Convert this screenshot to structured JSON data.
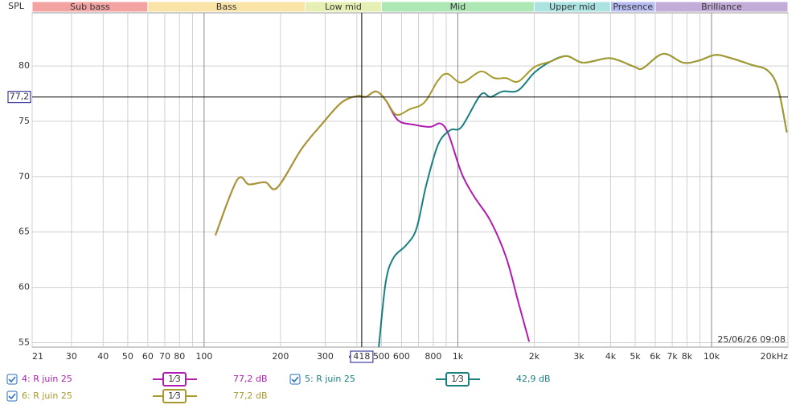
{
  "chart_data": {
    "type": "line",
    "y_label": "SPL",
    "log_x": true,
    "grid": true,
    "xlim": [
      21,
      20000
    ],
    "ylim": [
      54.6,
      84.8
    ],
    "xticks": [
      21,
      30,
      40,
      50,
      60,
      70,
      80,
      100,
      200,
      300,
      400,
      500,
      600,
      800,
      {
        "value": 1000,
        "label": "1k"
      },
      {
        "value": 2000,
        "label": "2k"
      },
      {
        "value": 3000,
        "label": "3k"
      },
      {
        "value": 4000,
        "label": "4k"
      },
      {
        "value": 5000,
        "label": "5k"
      },
      {
        "value": 6000,
        "label": "6k"
      },
      {
        "value": 7000,
        "label": "7k"
      },
      {
        "value": 8000,
        "label": "8k"
      },
      {
        "value": 10000,
        "label": "10k"
      },
      {
        "value": 20000,
        "label": "20kHz"
      }
    ],
    "minor_xticks": [
      90,
      700,
      900,
      9000
    ],
    "yticks": [
      55,
      60,
      65,
      70,
      75,
      80
    ],
    "bands": [
      {
        "name": "Sub bass",
        "from": 21,
        "to": 60,
        "color": "#f4a3a3"
      },
      {
        "name": "Bass",
        "from": 60,
        "to": 250,
        "color": "#f9e3a6"
      },
      {
        "name": "Low mid",
        "from": 250,
        "to": 500,
        "color": "#e6f0b4"
      },
      {
        "name": "Mid",
        "from": 500,
        "to": 2000,
        "color": "#ade8b4"
      },
      {
        "name": "Upper mid",
        "from": 2000,
        "to": 4000,
        "color": "#abe2e2"
      },
      {
        "name": "Presence",
        "from": 4000,
        "to": 6000,
        "color": "#b6bcf0"
      },
      {
        "name": "Brilliance",
        "from": 6000,
        "to": 20000,
        "color": "#c4acd9"
      }
    ],
    "cursor": {
      "x": 418,
      "y": {
        "value": 77.2,
        "label": "77,2"
      }
    },
    "timestamp": "25/06/26 09:08",
    "series": [
      {
        "name": "4: R juin 25",
        "color": "#b01cb0",
        "smoothing": "1⁄3",
        "readout": "77,2 dB",
        "x": [
          110.8,
          134.9,
          150.4,
          174,
          194,
          242,
          290,
          348,
          403,
          433,
          476,
          520,
          581,
          671,
          777,
          855,
          920,
          1035,
          1160,
          1345,
          1551,
          1730,
          1910
        ],
        "values": [
          64.7,
          69.7,
          69.3,
          69.5,
          69.0,
          72.5,
          74.7,
          76.7,
          77.3,
          77.2,
          77.7,
          76.9,
          75.1,
          74.7,
          74.5,
          74.8,
          73.8,
          70.3,
          68.2,
          66.0,
          62.7,
          58.7,
          55.1
        ]
      },
      {
        "name": "5: R juin 25",
        "color": "#1b7f80",
        "smoothing": "1⁄3",
        "readout": "42,9 dB",
        "x": [
          488,
          520,
          559,
          625,
          687,
          750,
          836,
          933,
          1035,
          1230,
          1345,
          1500,
          1730,
          2003,
          2318,
          2686,
          3112,
          3862,
          4310,
          4994,
          5367,
          6443,
          7734,
          8938,
          10340,
          11970,
          14400,
          16620,
          18270,
          19800
        ],
        "values": [
          54.6,
          60.5,
          62.7,
          63.8,
          65.3,
          69.2,
          72.9,
          74.2,
          74.5,
          77.4,
          77.2,
          77.7,
          77.8,
          79.4,
          80.4,
          80.9,
          80.3,
          80.7,
          80.5,
          79.9,
          79.8,
          81.1,
          80.3,
          80.5,
          81.0,
          80.7,
          80.1,
          79.6,
          78.0,
          74.0
        ]
      },
      {
        "name": "6: R juin 25",
        "color": "#a79a2c",
        "smoothing": "1⁄3",
        "readout": "77,2 dB",
        "x": [
          110.8,
          134.9,
          150.4,
          174,
          194,
          242,
          290,
          348,
          403,
          433,
          476,
          520,
          572,
          647,
          738,
          836,
          909,
          1035,
          1230,
          1394,
          1551,
          1730,
          2003,
          2318,
          2686,
          3112,
          3862,
          4310,
          4994,
          5367,
          6443,
          7734,
          8938,
          10340,
          11970,
          14400,
          16620,
          18270,
          19800
        ],
        "values": [
          64.7,
          69.7,
          69.3,
          69.5,
          69.0,
          72.5,
          74.7,
          76.7,
          77.3,
          77.2,
          77.7,
          76.9,
          75.6,
          76.1,
          76.7,
          78.7,
          79.3,
          78.5,
          79.5,
          78.9,
          78.9,
          78.6,
          79.9,
          80.4,
          80.9,
          80.3,
          80.7,
          80.5,
          79.9,
          79.8,
          81.1,
          80.3,
          80.5,
          81.0,
          80.7,
          80.1,
          79.6,
          78.0,
          74.0
        ]
      }
    ]
  }
}
